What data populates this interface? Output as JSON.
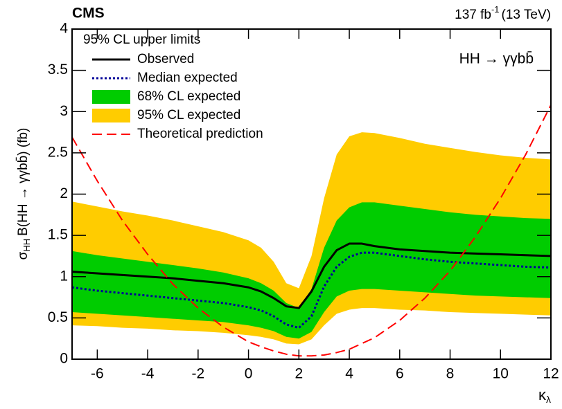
{
  "chart_data": {
    "type": "limit-bands",
    "experiment": "CMS",
    "luminosity": {
      "text": "137 fb",
      "superscript": "-1",
      "suffix": "(13 TeV)"
    },
    "process": "HH → γγbb̄",
    "legend_title": "95% CL upper limits",
    "y_label": {
      "symbol": "σ",
      "subscript": "HH",
      "text": "B(HH → γγbb̄) (fb)"
    },
    "x_label": {
      "symbol": "κ",
      "subscript": "λ"
    },
    "xlim": [
      -7,
      12
    ],
    "ylim": [
      0,
      4
    ],
    "xticks": [
      -6,
      -4,
      -2,
      0,
      2,
      4,
      6,
      8,
      10,
      12
    ],
    "yticks": [
      0,
      0.5,
      1,
      1.5,
      2,
      2.5,
      3,
      3.5,
      4
    ],
    "x": [
      -7,
      -6,
      -5,
      -4,
      -3,
      -2,
      -1,
      0,
      0.5,
      1,
      1.5,
      2,
      2.5,
      3,
      3.5,
      4,
      4.5,
      5,
      6,
      7,
      8,
      9,
      10,
      11,
      12
    ],
    "series": [
      {
        "name": "95% CL expected",
        "style": "band",
        "color": "#ffcc00",
        "lower": [
          0.41,
          0.4,
          0.38,
          0.37,
          0.35,
          0.34,
          0.32,
          0.29,
          0.27,
          0.24,
          0.19,
          0.18,
          0.24,
          0.41,
          0.55,
          0.6,
          0.62,
          0.62,
          0.6,
          0.59,
          0.57,
          0.56,
          0.55,
          0.54,
          0.53
        ],
        "upper": [
          1.91,
          1.85,
          1.79,
          1.74,
          1.68,
          1.61,
          1.54,
          1.44,
          1.35,
          1.18,
          0.92,
          0.86,
          1.25,
          1.95,
          2.48,
          2.7,
          2.75,
          2.74,
          2.68,
          2.61,
          2.56,
          2.51,
          2.47,
          2.44,
          2.42
        ]
      },
      {
        "name": "68% CL expected",
        "style": "band",
        "color": "#00cc00",
        "lower": [
          0.57,
          0.55,
          0.53,
          0.51,
          0.49,
          0.47,
          0.45,
          0.41,
          0.38,
          0.34,
          0.27,
          0.25,
          0.33,
          0.57,
          0.76,
          0.83,
          0.85,
          0.85,
          0.83,
          0.81,
          0.79,
          0.77,
          0.76,
          0.75,
          0.74
        ],
        "upper": [
          1.31,
          1.26,
          1.22,
          1.18,
          1.14,
          1.1,
          1.05,
          0.98,
          0.92,
          0.83,
          0.68,
          0.62,
          0.85,
          1.35,
          1.68,
          1.84,
          1.9,
          1.9,
          1.86,
          1.82,
          1.78,
          1.75,
          1.73,
          1.71,
          1.7
        ]
      },
      {
        "name": "Median expected",
        "style": "dotted",
        "color": "#000099",
        "values": [
          0.87,
          0.83,
          0.8,
          0.77,
          0.74,
          0.71,
          0.68,
          0.63,
          0.59,
          0.52,
          0.42,
          0.38,
          0.52,
          0.88,
          1.12,
          1.24,
          1.29,
          1.29,
          1.25,
          1.21,
          1.18,
          1.16,
          1.14,
          1.12,
          1.11
        ]
      },
      {
        "name": "Observed",
        "style": "solid",
        "color": "#000000",
        "values": [
          1.06,
          1.04,
          1.02,
          1.0,
          0.98,
          0.95,
          0.92,
          0.87,
          0.82,
          0.74,
          0.64,
          0.62,
          0.82,
          1.12,
          1.32,
          1.4,
          1.4,
          1.37,
          1.33,
          1.31,
          1.29,
          1.28,
          1.27,
          1.26,
          1.25
        ]
      },
      {
        "name": "Theoretical prediction",
        "style": "dashed",
        "color": "#ff0000",
        "values": [
          2.69,
          2.16,
          1.68,
          1.27,
          0.91,
          0.62,
          0.39,
          0.21,
          0.15,
          0.1,
          0.06,
          0.04,
          0.04,
          0.05,
          0.08,
          0.12,
          0.19,
          0.26,
          0.47,
          0.74,
          1.07,
          1.48,
          1.95,
          2.48,
          3.08
        ]
      }
    ],
    "legend_order": [
      3,
      2,
      1,
      0,
      4
    ]
  }
}
